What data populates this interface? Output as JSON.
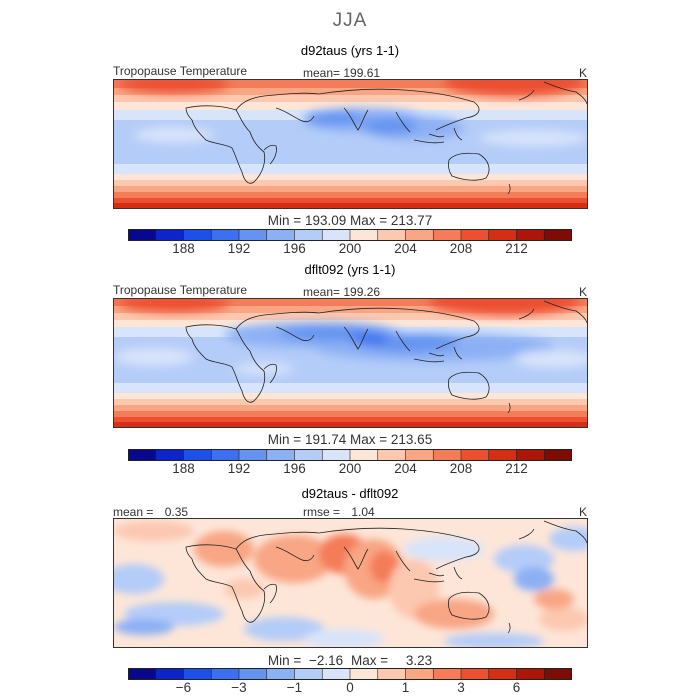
{
  "supertitle": "JJA",
  "colors": {
    "scale": [
      "#08088c",
      "#0c24c8",
      "#1c50e8",
      "#3c70f0",
      "#6494f0",
      "#8cb0f4",
      "#b4ccf8",
      "#d8e4fa",
      "#fde6d8",
      "#fcc8b0",
      "#f8a684",
      "#f47c58",
      "#ec5030",
      "#d42e14",
      "#ac1608",
      "#7c0c04"
    ]
  },
  "chart_data": [
    {
      "type": "heatmap",
      "title": "d92taus (yrs 1-1)",
      "variable": "Tropopause Temperature",
      "mean_label": "mean=",
      "mean": "199.61",
      "units": "K",
      "min_label": "Min =",
      "min": "193.09",
      "max_label": "Max =",
      "max": "213.77",
      "colorbar_levels": [
        186,
        188,
        190,
        192,
        194,
        196,
        198,
        200,
        202,
        204,
        206,
        208,
        210,
        212,
        214
      ],
      "colorbar_ticks": [
        "188",
        "192",
        "196",
        "200",
        "204",
        "208",
        "212"
      ],
      "colorbar_tick_values": [
        188,
        192,
        196,
        200,
        204,
        208,
        212
      ]
    },
    {
      "type": "heatmap",
      "title": "dflt092 (yrs 1-1)",
      "variable": "Tropopause Temperature",
      "mean_label": "mean=",
      "mean": "199.26",
      "units": "K",
      "min_label": "Min =",
      "min": "191.74",
      "max_label": "Max =",
      "max": "213.65",
      "colorbar_levels": [
        186,
        188,
        190,
        192,
        194,
        196,
        198,
        200,
        202,
        204,
        206,
        208,
        210,
        212,
        214
      ],
      "colorbar_ticks": [
        "188",
        "192",
        "196",
        "200",
        "204",
        "208",
        "212"
      ],
      "colorbar_tick_values": [
        188,
        192,
        196,
        200,
        204,
        208,
        212
      ]
    },
    {
      "type": "heatmap",
      "title": "d92taus - dflt092",
      "mean_label": "mean =",
      "mean": "0.35",
      "rmse_label": "rmse =",
      "rmse": "1.04",
      "units": "K",
      "min_label": "Min =",
      "min": "−2.16",
      "max_label": "Max =",
      "max": "3.23",
      "colorbar_levels": [
        -8,
        -6,
        -4,
        -3,
        -2,
        -1,
        -0.5,
        0,
        0.5,
        1,
        2,
        3,
        4,
        6,
        8
      ],
      "colorbar_ticks": [
        "−6",
        "−3",
        "−1",
        "0",
        "1",
        "3",
        "6"
      ],
      "colorbar_tick_values": [
        -6,
        -3,
        -1,
        0,
        1,
        3,
        6
      ]
    }
  ]
}
